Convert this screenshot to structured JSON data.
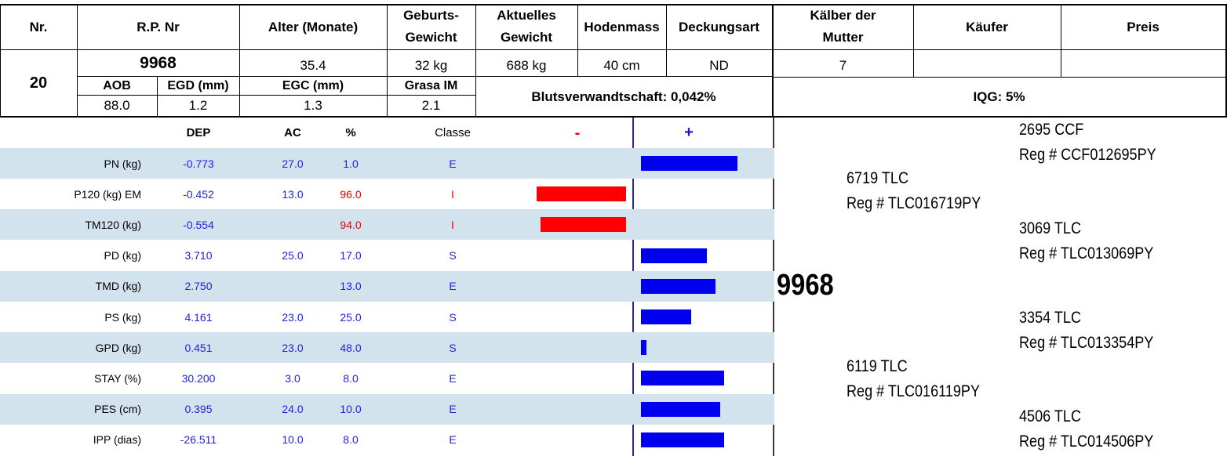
{
  "header": {
    "nr": "Nr.",
    "rpnr": "R.P. Nr",
    "alter": "Alter (Monate)",
    "geburt_l1": "Geburts-",
    "geburt_l2": "Gewicht",
    "aktuell_l1": "Aktuelles",
    "aktuell_l2": "Gewicht",
    "hoden": "Hodenmass",
    "deckung": "Deckungsart",
    "kaelber_l1": "Kälber der",
    "kaelber_l2": "Mutter",
    "kaeufer": "Käufer",
    "preis": "Preis"
  },
  "animal": {
    "nr": "20",
    "rpnr": "9968",
    "alter": "35.4",
    "geburt": "32 kg",
    "aktuell": "688 kg",
    "hoden": "40 cm",
    "deckung": "ND",
    "kaelber": "7",
    "kaeufer": "",
    "preis": ""
  },
  "sub": {
    "aob_label": "AOB",
    "egd_label": "EGD (mm)",
    "egc_label": "EGC (mm)",
    "grasa_label": "Grasa IM",
    "aob": "88.0",
    "egd": "1.2",
    "egc": "1.3",
    "grasa": "2.1",
    "blut": "Blutsverwandtschaft: 0,042%",
    "iqg": "IQG: 5%"
  },
  "table": {
    "headers": {
      "dep": "DEP",
      "ac": "AC",
      "pct": "%",
      "classe": "Classe",
      "minus": "-",
      "plus": "+"
    },
    "colors": {
      "negative_bar": "#ff0000",
      "positive_bar": "#0000ee",
      "stripe": "#d2e3ee",
      "value_text": "#2222dd"
    },
    "rows": [
      {
        "trait": "PN (kg)",
        "dep": "-0.773",
        "ac": "27.0",
        "pct": "1.0",
        "classe": "E",
        "bar": 1.0
      },
      {
        "trait": "P120 (kg) EM",
        "dep": "-0.452",
        "ac": "13.0",
        "pct": "96.0",
        "classe": "I",
        "bar": -0.93
      },
      {
        "trait": "TM120 (kg)",
        "dep": "-0.554",
        "ac": "",
        "pct": "94.0",
        "classe": "I",
        "bar": -0.89
      },
      {
        "trait": "PD (kg)",
        "dep": "3.710",
        "ac": "25.0",
        "pct": "17.0",
        "classe": "S",
        "bar": 0.68
      },
      {
        "trait": "TMD (kg)",
        "dep": "2.750",
        "ac": "",
        "pct": "13.0",
        "classe": "E",
        "bar": 0.77
      },
      {
        "trait": "PS (kg)",
        "dep": "4.161",
        "ac": "23.0",
        "pct": "25.0",
        "classe": "S",
        "bar": 0.52
      },
      {
        "trait": "GPD (kg)",
        "dep": "0.451",
        "ac": "23.0",
        "pct": "48.0",
        "classe": "S",
        "bar": 0.06
      },
      {
        "trait": "STAY (%)",
        "dep": "30.200",
        "ac": "3.0",
        "pct": "8.0",
        "classe": "E",
        "bar": 0.86
      },
      {
        "trait": "PES (cm)",
        "dep": "0.395",
        "ac": "24.0",
        "pct": "10.0",
        "classe": "E",
        "bar": 0.82
      },
      {
        "trait": "IPP (dias)",
        "dep": "-26.511",
        "ac": "10.0",
        "pct": "8.0",
        "classe": "E",
        "bar": 0.86
      }
    ]
  },
  "pedigree": {
    "animal": "9968",
    "sire": {
      "name": "6719 TLC",
      "reg": "Reg # TLC016719PY"
    },
    "dam": {
      "name": "6119 TLC",
      "reg": "Reg # TLC016119PY"
    },
    "sire_sire": {
      "name": "2695 CCF",
      "reg": "Reg # CCF012695PY"
    },
    "sire_dam": {
      "name": "3069 TLC",
      "reg": "Reg # TLC013069PY"
    },
    "dam_sire": {
      "name": "3354 TLC",
      "reg": "Reg # TLC013354PY"
    },
    "dam_dam": {
      "name": "4506 TLC",
      "reg": "Reg # TLC014506PY"
    }
  }
}
